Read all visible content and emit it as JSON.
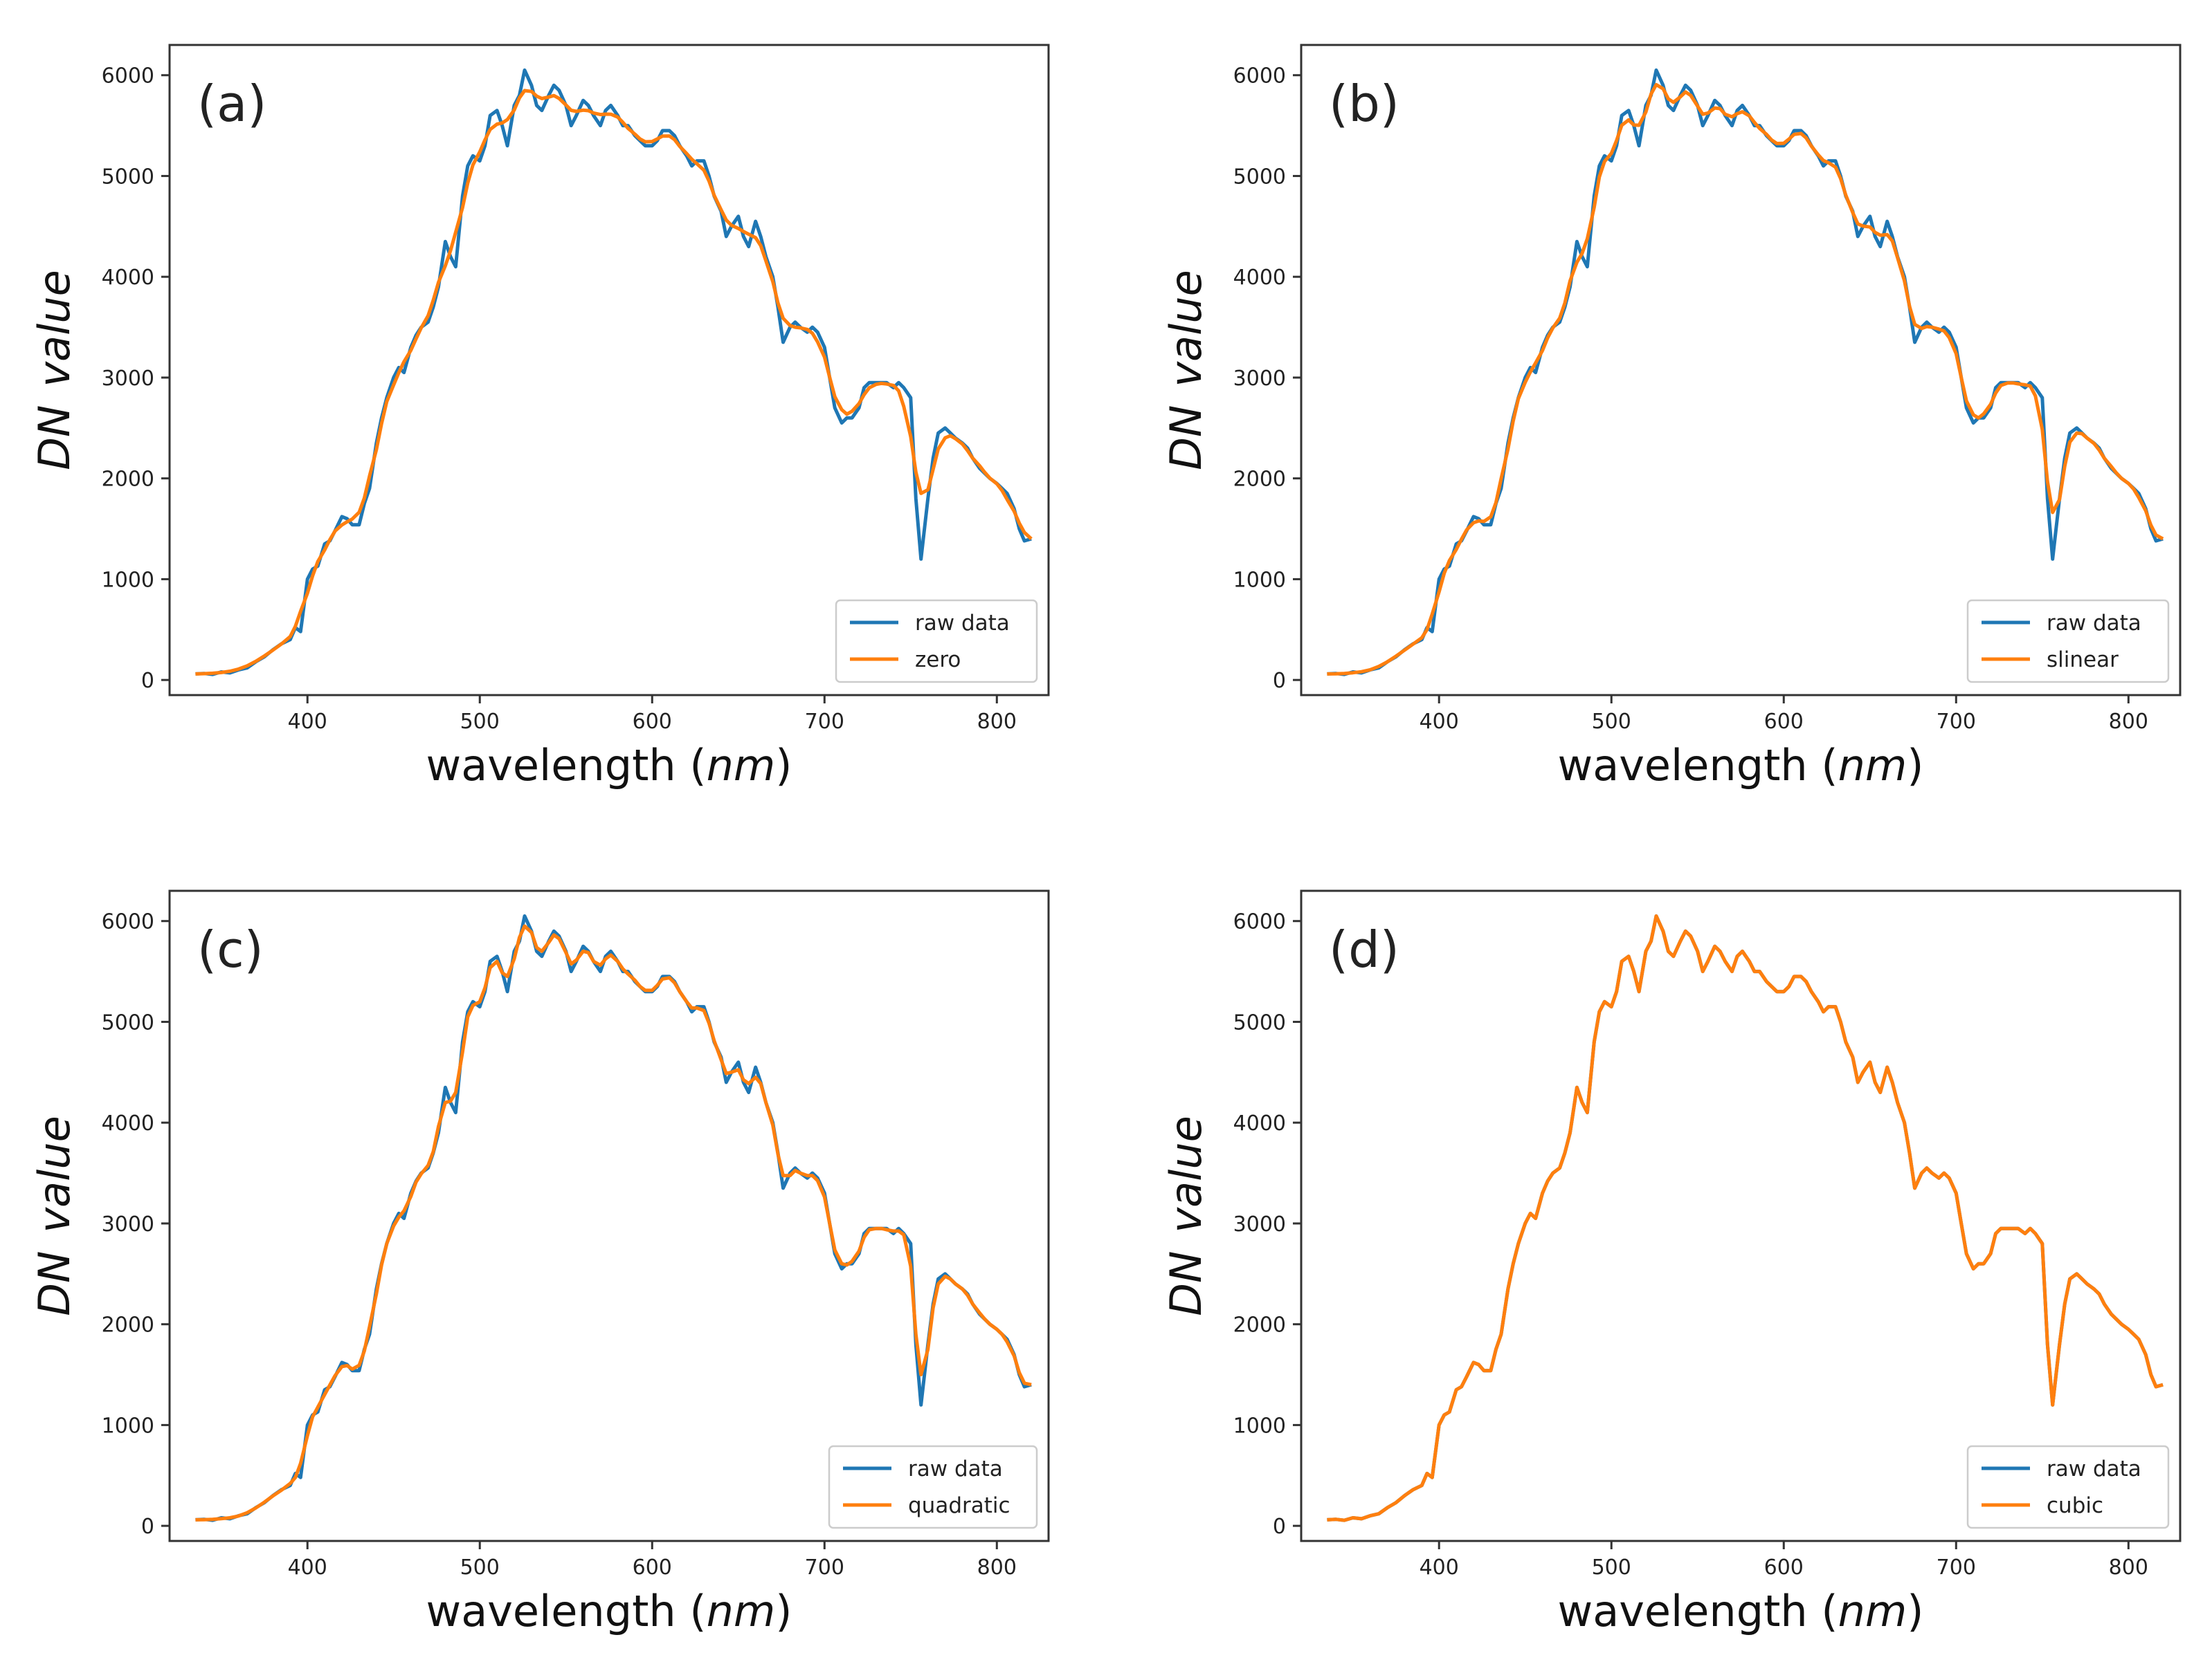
{
  "figure": {
    "xlabel_prefix": "wavelength (",
    "xlabel_unit": "nm",
    "xlabel_suffix": ")",
    "ylabel_prefix": "DN",
    "ylabel_suffix": "value"
  },
  "colors": {
    "raw": "#1f77b4",
    "interp": "#ff7f0e"
  },
  "chart_data": [
    {
      "type": "line",
      "panel_label": "(a)",
      "xlim": [
        320,
        830
      ],
      "ylim": [
        -150,
        6300
      ],
      "xticks": [
        400,
        500,
        600,
        700,
        800
      ],
      "yticks": [
        0,
        1000,
        2000,
        3000,
        4000,
        5000,
        6000
      ],
      "xlabel": "wavelength (nm)",
      "ylabel": "DN value",
      "legend_position": "lower-right",
      "series": [
        {
          "name": "raw data",
          "role": "raw",
          "smooth": 0
        },
        {
          "name": "zero",
          "role": "interp",
          "smooth": 4
        }
      ]
    },
    {
      "type": "line",
      "panel_label": "(b)",
      "xlim": [
        320,
        830
      ],
      "ylim": [
        -150,
        6300
      ],
      "xticks": [
        400,
        500,
        600,
        700,
        800
      ],
      "yticks": [
        0,
        1000,
        2000,
        3000,
        4000,
        5000,
        6000
      ],
      "xlabel": "wavelength (nm)",
      "ylabel": "DN value",
      "legend_position": "lower-right",
      "series": [
        {
          "name": "raw data",
          "role": "raw",
          "smooth": 0
        },
        {
          "name": "slinear",
          "role": "interp",
          "smooth": 2
        }
      ]
    },
    {
      "type": "line",
      "panel_label": "(c)",
      "xlim": [
        320,
        830
      ],
      "ylim": [
        -150,
        6300
      ],
      "xticks": [
        400,
        500,
        600,
        700,
        800
      ],
      "yticks": [
        0,
        1000,
        2000,
        3000,
        4000,
        5000,
        6000
      ],
      "xlabel": "wavelength (nm)",
      "ylabel": "DN value",
      "legend_position": "lower-right",
      "series": [
        {
          "name": "raw data",
          "role": "raw",
          "smooth": 0
        },
        {
          "name": "quadratic",
          "role": "interp",
          "smooth": 1
        }
      ]
    },
    {
      "type": "line",
      "panel_label": "(d)",
      "xlim": [
        320,
        830
      ],
      "ylim": [
        -150,
        6300
      ],
      "xticks": [
        400,
        500,
        600,
        700,
        800
      ],
      "yticks": [
        0,
        1000,
        2000,
        3000,
        4000,
        5000,
        6000
      ],
      "xlabel": "wavelength (nm)",
      "ylabel": "DN value",
      "legend_position": "lower-right",
      "series": [
        {
          "name": "raw data",
          "role": "raw",
          "smooth": 0
        },
        {
          "name": "cubic",
          "role": "interp",
          "smooth": 0
        }
      ]
    }
  ],
  "raw_spectrum": {
    "x": [
      335,
      340,
      345,
      350,
      355,
      360,
      365,
      370,
      375,
      380,
      385,
      390,
      393,
      396,
      400,
      403,
      406,
      410,
      413,
      416,
      420,
      423,
      426,
      430,
      433,
      436,
      440,
      443,
      446,
      450,
      453,
      456,
      460,
      463,
      466,
      470,
      473,
      476,
      480,
      483,
      486,
      490,
      493,
      496,
      500,
      503,
      506,
      510,
      513,
      516,
      520,
      523,
      526,
      530,
      533,
      536,
      540,
      543,
      546,
      550,
      553,
      556,
      560,
      563,
      566,
      570,
      573,
      576,
      580,
      583,
      586,
      590,
      593,
      596,
      600,
      603,
      606,
      610,
      613,
      616,
      620,
      623,
      626,
      630,
      633,
      636,
      640,
      643,
      646,
      650,
      653,
      656,
      660,
      663,
      666,
      670,
      673,
      676,
      680,
      683,
      686,
      690,
      693,
      696,
      700,
      703,
      706,
      710,
      713,
      716,
      720,
      723,
      726,
      730,
      733,
      736,
      740,
      743,
      746,
      750,
      753,
      756,
      760,
      763,
      766,
      770,
      773,
      776,
      780,
      783,
      786,
      790,
      793,
      796,
      800,
      803,
      806,
      810,
      813,
      816,
      820
    ],
    "y": [
      60,
      65,
      55,
      80,
      70,
      100,
      120,
      180,
      230,
      300,
      360,
      400,
      520,
      480,
      1000,
      1100,
      1130,
      1350,
      1380,
      1480,
      1620,
      1600,
      1540,
      1540,
      1750,
      1900,
      2350,
      2600,
      2800,
      3000,
      3100,
      3050,
      3300,
      3420,
      3500,
      3550,
      3700,
      3900,
      4350,
      4200,
      4100,
      4800,
      5100,
      5200,
      5150,
      5300,
      5600,
      5650,
      5500,
      5300,
      5700,
      5800,
      6050,
      5900,
      5700,
      5650,
      5800,
      5900,
      5850,
      5700,
      5500,
      5600,
      5750,
      5700,
      5600,
      5500,
      5650,
      5700,
      5600,
      5500,
      5500,
      5400,
      5350,
      5300,
      5300,
      5350,
      5450,
      5450,
      5400,
      5300,
      5200,
      5100,
      5150,
      5150,
      5000,
      4800,
      4650,
      4400,
      4500,
      4600,
      4400,
      4300,
      4550,
      4400,
      4200,
      4000,
      3700,
      3350,
      3500,
      3550,
      3500,
      3450,
      3500,
      3450,
      3300,
      3000,
      2700,
      2550,
      2600,
      2600,
      2700,
      2900,
      2950,
      2950,
      2950,
      2950,
      2900,
      2950,
      2900,
      2800,
      1800,
      1200,
      1800,
      2200,
      2450,
      2500,
      2450,
      2400,
      2350,
      2300,
      2200,
      2100,
      2050,
      2000,
      1950,
      1900,
      1850,
      1700,
      1500,
      1380,
      1400
    ]
  }
}
